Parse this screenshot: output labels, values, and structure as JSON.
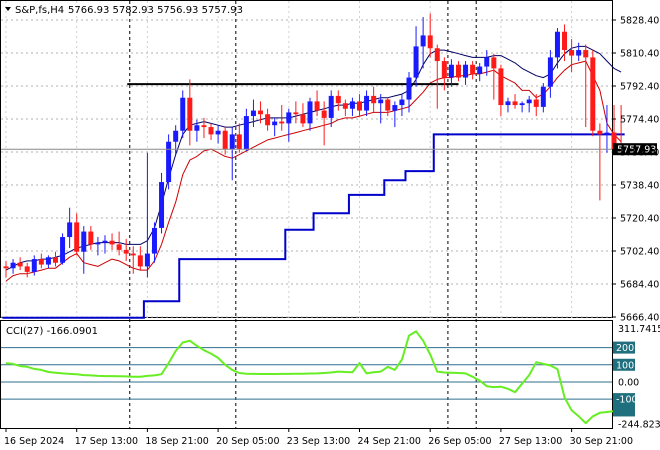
{
  "header": {
    "symbol_title": "S&P,fs,H4",
    "ohlc": "5766.93 5782.93 5756.93 5757.93"
  },
  "indicator": {
    "title": "CCI(27) -166.0901"
  },
  "colors": {
    "bull": "#1a1aff",
    "bear": "#ff1a1a",
    "wick": "#000000",
    "ma_fast": "#cc0000",
    "ma_slow": "#000066",
    "stop_line": "#0000cc",
    "cci_line": "#66ee22",
    "level_line": "#2f6f8f",
    "price_tag_bg": "#000000",
    "cci_tag_bg": "#1f6f7f"
  },
  "chart_data": [
    {
      "type": "candlestick",
      "title": "S&P,fs,H4",
      "ylim": [
        5666.4,
        5836.4
      ],
      "y_ticks": [
        "5828.40",
        "5810.40",
        "5792.40",
        "5774.40",
        "5756.40",
        "5738.40",
        "5720.40",
        "5702.40",
        "5684.40",
        "5666.40"
      ],
      "current_price_label": "5757.93",
      "current_price": 5757.93,
      "x_tick_labels": [
        "16 Sep 2024",
        "17 Sep 13:00",
        "18 Sep 21:00",
        "20 Sep 05:00",
        "23 Sep 13:00",
        "24 Sep 21:00",
        "26 Sep 05:00",
        "27 Sep 13:00",
        "30 Sep 21:00"
      ],
      "x_tick_bars": [
        0,
        10,
        20,
        30,
        40,
        50,
        60,
        70,
        80
      ],
      "bar_count": 88,
      "resistance_level": 5793.4,
      "resistance_bars": [
        18,
        64
      ],
      "candles": [
        [
          5694,
          5697,
          5688,
          5693
        ],
        [
          5693,
          5698,
          5690,
          5696
        ],
        [
          5696,
          5699,
          5692,
          5694
        ],
        [
          5694,
          5696,
          5688,
          5691
        ],
        [
          5691,
          5700,
          5689,
          5698
        ],
        [
          5698,
          5701,
          5693,
          5695
        ],
        [
          5695,
          5700,
          5693,
          5699
        ],
        [
          5699,
          5702,
          5694,
          5696
        ],
        [
          5696,
          5712,
          5695,
          5710
        ],
        [
          5710,
          5726,
          5704,
          5718
        ],
        [
          5718,
          5723,
          5700,
          5702
        ],
        [
          5702,
          5716,
          5690,
          5713
        ],
        [
          5713,
          5716,
          5703,
          5706
        ],
        [
          5706,
          5710,
          5700,
          5707
        ],
        [
          5707,
          5711,
          5701,
          5708
        ],
        [
          5708,
          5712,
          5703,
          5706
        ],
        [
          5706,
          5713,
          5700,
          5703
        ],
        [
          5703,
          5709,
          5697,
          5701
        ],
        [
          5701,
          5705,
          5690,
          5700
        ],
        [
          5700,
          5705,
          5692,
          5694
        ],
        [
          5694,
          5756,
          5688,
          5701
        ],
        [
          5701,
          5718,
          5696,
          5715
        ],
        [
          5715,
          5745,
          5712,
          5740
        ],
        [
          5740,
          5766,
          5736,
          5762
        ],
        [
          5762,
          5771,
          5755,
          5768
        ],
        [
          5768,
          5790,
          5764,
          5786
        ],
        [
          5786,
          5796,
          5760,
          5768
        ],
        [
          5768,
          5774,
          5762,
          5771
        ],
        [
          5771,
          5775,
          5764,
          5770
        ],
        [
          5770,
          5772,
          5763,
          5766
        ],
        [
          5766,
          5771,
          5761,
          5768
        ],
        [
          5768,
          5770,
          5755,
          5758
        ],
        [
          5758,
          5770,
          5741,
          5766
        ],
        [
          5766,
          5772,
          5756,
          5758
        ],
        [
          5758,
          5780,
          5757,
          5776
        ],
        [
          5776,
          5785,
          5770,
          5779
        ],
        [
          5779,
          5784,
          5772,
          5777
        ],
        [
          5777,
          5780,
          5768,
          5771
        ],
        [
          5771,
          5775,
          5765,
          5773
        ],
        [
          5773,
          5782,
          5768,
          5772
        ],
        [
          5772,
          5780,
          5762,
          5778
        ],
        [
          5778,
          5784,
          5772,
          5777
        ],
        [
          5777,
          5783,
          5770,
          5772
        ],
        [
          5772,
          5786,
          5768,
          5784
        ],
        [
          5784,
          5790,
          5776,
          5779
        ],
        [
          5779,
          5784,
          5760,
          5775
        ],
        [
          5775,
          5790,
          5770,
          5787
        ],
        [
          5787,
          5790,
          5779,
          5783
        ],
        [
          5783,
          5785,
          5776,
          5780
        ],
        [
          5780,
          5786,
          5776,
          5784
        ],
        [
          5784,
          5788,
          5776,
          5779
        ],
        [
          5779,
          5790,
          5776,
          5787
        ],
        [
          5787,
          5792,
          5778,
          5783
        ],
        [
          5783,
          5788,
          5772,
          5785
        ],
        [
          5785,
          5786,
          5776,
          5779
        ],
        [
          5779,
          5784,
          5770,
          5782
        ],
        [
          5782,
          5788,
          5776,
          5785
        ],
        [
          5785,
          5800,
          5778,
          5797
        ],
        [
          5797,
          5825,
          5792,
          5814
        ],
        [
          5814,
          5830,
          5802,
          5820
        ],
        [
          5820,
          5832,
          5808,
          5813
        ],
        [
          5813,
          5815,
          5780,
          5806
        ],
        [
          5806,
          5808,
          5790,
          5797
        ],
        [
          5797,
          5807,
          5792,
          5804
        ],
        [
          5804,
          5806,
          5795,
          5797
        ],
        [
          5797,
          5806,
          5793,
          5804
        ],
        [
          5804,
          5806,
          5796,
          5799
        ],
        [
          5799,
          5805,
          5795,
          5803
        ],
        [
          5803,
          5812,
          5798,
          5808
        ],
        [
          5808,
          5810,
          5785,
          5802
        ],
        [
          5802,
          5804,
          5776,
          5782
        ],
        [
          5782,
          5786,
          5778,
          5784
        ],
        [
          5784,
          5788,
          5780,
          5782
        ],
        [
          5782,
          5784,
          5778,
          5783
        ],
        [
          5783,
          5787,
          5778,
          5785
        ],
        [
          5785,
          5788,
          5776,
          5781
        ],
        [
          5781,
          5794,
          5778,
          5792
        ],
        [
          5792,
          5812,
          5786,
          5808
        ],
        [
          5808,
          5824,
          5802,
          5822
        ],
        [
          5822,
          5826,
          5806,
          5812
        ],
        [
          5812,
          5818,
          5800,
          5809
        ],
        [
          5809,
          5816,
          5806,
          5812
        ],
        [
          5812,
          5815,
          5770,
          5808
        ],
        [
          5808,
          5812,
          5765,
          5768
        ],
        [
          5768,
          5772,
          5730,
          5766
        ],
        [
          5766,
          5782,
          5756,
          5767
        ],
        [
          5767,
          5782,
          5756,
          5758
        ],
        [
          5758,
          5782,
          5756,
          5757.93
        ]
      ],
      "series": [
        {
          "role": "fast-moving-average",
          "values": [
            5686,
            5689,
            5690,
            5690,
            5691,
            5692,
            5693,
            5693,
            5696,
            5699,
            5701,
            5696,
            5695,
            5694,
            5696,
            5698,
            5697,
            5695,
            5693,
            5692,
            5692,
            5697,
            5706,
            5718,
            5729,
            5744,
            5752,
            5754,
            5757,
            5758,
            5756,
            5754,
            5753,
            5755,
            5757,
            5759,
            5761,
            5763,
            5764,
            5765,
            5766,
            5767,
            5768,
            5769,
            5770,
            5771,
            5772,
            5774,
            5775,
            5775,
            5776,
            5777,
            5778,
            5778,
            5778,
            5779,
            5780,
            5781,
            5785,
            5789,
            5794,
            5796,
            5797,
            5797,
            5798,
            5798,
            5799,
            5799,
            5800,
            5801,
            5798,
            5796,
            5794,
            5790,
            5790,
            5786,
            5788,
            5792,
            5797,
            5801,
            5804,
            5805,
            5806,
            5798,
            5790,
            5772,
            5766,
            5762
          ]
        },
        {
          "role": "slow-moving-average",
          "values": [
            5692,
            5694,
            5696,
            5697,
            5697,
            5698,
            5698,
            5699,
            5700,
            5702,
            5704,
            5705,
            5706,
            5707,
            5707,
            5707,
            5707,
            5706,
            5706,
            5706,
            5708,
            5715,
            5728,
            5742,
            5755,
            5766,
            5771,
            5772,
            5773,
            5772,
            5771,
            5770,
            5770,
            5771,
            5772,
            5773,
            5774,
            5775,
            5775,
            5775,
            5775,
            5776,
            5777,
            5778,
            5779,
            5780,
            5781,
            5782,
            5782,
            5783,
            5783,
            5784,
            5785,
            5786,
            5786,
            5787,
            5788,
            5790,
            5796,
            5804,
            5810,
            5812,
            5812,
            5811,
            5810,
            5809,
            5808,
            5808,
            5808,
            5809,
            5809,
            5807,
            5805,
            5802,
            5800,
            5798,
            5797,
            5799,
            5805,
            5810,
            5813,
            5814,
            5814,
            5812,
            5810,
            5806,
            5802,
            5800
          ]
        },
        {
          "role": "trailing-stop",
          "values": [
            5666,
            5666,
            5666,
            5666,
            5666,
            5666,
            5666,
            5666,
            5666,
            5666,
            5666,
            5666,
            5666,
            5666,
            5666,
            5666,
            5666,
            5666,
            5666,
            5666,
            5675,
            5675,
            5675,
            5675,
            5675,
            5698,
            5698,
            5698,
            5698,
            5698,
            5698,
            5698,
            5698,
            5698,
            5698,
            5698,
            5698,
            5698,
            5698,
            5698,
            5714,
            5714,
            5714,
            5714,
            5723,
            5723,
            5723,
            5723,
            5723,
            5733,
            5733,
            5733,
            5733,
            5733,
            5741,
            5741,
            5741,
            5746,
            5746,
            5746,
            5746,
            5766,
            5766,
            5766,
            5766,
            5766,
            5766,
            5766,
            5766,
            5766,
            5766,
            5766,
            5766,
            5766,
            5766,
            5766,
            5766,
            5766,
            5766,
            5766,
            5766,
            5766,
            5766,
            5766,
            5766,
            5766,
            5766,
            5766
          ]
        }
      ]
    },
    {
      "type": "line",
      "title": "CCI(27) -166.0901",
      "ylim": [
        -245,
        320
      ],
      "y_ticks": [
        "311.7415",
        "200",
        "100",
        "0.00",
        "-100",
        "-244.823"
      ],
      "levels": [
        200,
        100,
        0,
        -100
      ],
      "current_value_label": "-166.0901",
      "current_value": -166.0901,
      "series": [
        {
          "role": "cci",
          "values": [
            110,
            105,
            92,
            88,
            76,
            70,
            58,
            54,
            50,
            47,
            45,
            40,
            38,
            35,
            34,
            34,
            33,
            32,
            30,
            30,
            35,
            38,
            45,
            110,
            180,
            230,
            240,
            210,
            185,
            165,
            140,
            100,
            70,
            52,
            48,
            47,
            46,
            46,
            46,
            47,
            47,
            48,
            48,
            49,
            50,
            52,
            55,
            60,
            58,
            57,
            110,
            50,
            56,
            60,
            88,
            70,
            130,
            270,
            295,
            240,
            160,
            60,
            55,
            54,
            52,
            50,
            30,
            8,
            -25,
            -30,
            -28,
            -40,
            -60,
            -10,
            40,
            115,
            105,
            96,
            75,
            -90,
            -165,
            -200,
            -240,
            -200,
            -180,
            -175,
            -170,
            -166
          ]
        }
      ]
    }
  ]
}
